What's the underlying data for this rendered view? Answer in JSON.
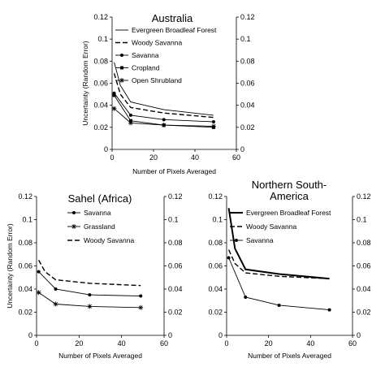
{
  "chart_data": [
    {
      "type": "line",
      "title": "Australia",
      "xlabel": "Number of Pixels Averaged",
      "ylabel": "Uncertainty (Random Error)",
      "xlim": [
        0,
        60
      ],
      "ylim": [
        0,
        0.12
      ],
      "x_ticks": [
        "0",
        "20",
        "40",
        "60"
      ],
      "y_ticks": [
        "0",
        "0.02",
        "0.04",
        "0.06",
        "0.08",
        "0.1",
        "0.12"
      ],
      "secondary_y_axis": true,
      "legend_position": "top-right",
      "series": [
        {
          "name": "Evergreen Broadleaf Forest",
          "style": "solid",
          "marker": "none",
          "x": [
            1,
            4,
            9,
            25,
            49
          ],
          "y": [
            0.079,
            0.058,
            0.043,
            0.036,
            0.031
          ]
        },
        {
          "name": "Woody Savanna",
          "style": "dashed",
          "marker": "none",
          "x": [
            1,
            4,
            9,
            25,
            49
          ],
          "y": [
            0.069,
            0.05,
            0.038,
            0.033,
            0.029
          ]
        },
        {
          "name": "Savanna",
          "style": "solid",
          "marker": "dot",
          "x": [
            1,
            9,
            25,
            49
          ],
          "y": [
            0.051,
            0.031,
            0.027,
            0.025
          ]
        },
        {
          "name": "Cropland",
          "style": "solid",
          "marker": "square",
          "x": [
            1,
            9,
            25,
            49
          ],
          "y": [
            0.049,
            0.026,
            0.022,
            0.02
          ]
        },
        {
          "name": "Open Shrubland",
          "style": "solid",
          "marker": "star",
          "x": [
            1,
            9,
            25,
            49
          ],
          "y": [
            0.037,
            0.024,
            0.022,
            0.021
          ]
        }
      ]
    },
    {
      "type": "line",
      "title": "Sahel (Africa)",
      "xlabel": "Number of Pixels Averaged",
      "ylabel": "Uncertainty (Random Error)",
      "xlim": [
        0,
        60
      ],
      "ylim": [
        0,
        0.12
      ],
      "x_ticks": [
        "0",
        "20",
        "40",
        "60"
      ],
      "y_ticks": [
        "0",
        "0.02",
        "0.04",
        "0.06",
        "0.08",
        "0.1",
        "0.12"
      ],
      "secondary_y_axis": true,
      "legend_position": "top-right",
      "series": [
        {
          "name": "Savanna",
          "style": "solid",
          "marker": "dot",
          "x": [
            1,
            9,
            25,
            49
          ],
          "y": [
            0.055,
            0.04,
            0.035,
            0.034
          ]
        },
        {
          "name": "Grassland",
          "style": "solid",
          "marker": "star",
          "x": [
            1,
            9,
            25,
            49
          ],
          "y": [
            0.037,
            0.027,
            0.025,
            0.024
          ]
        },
        {
          "name": "Woody Savanna",
          "style": "dashed",
          "marker": "none",
          "x": [
            1,
            4,
            9,
            25,
            49
          ],
          "y": [
            0.065,
            0.055,
            0.048,
            0.045,
            0.043
          ]
        }
      ]
    },
    {
      "type": "line",
      "title": "Northern South-America",
      "title_lines": [
        "Northern South-",
        "America"
      ],
      "xlabel": "Number of Pixels Averaged",
      "ylabel": "",
      "xlim": [
        0,
        60
      ],
      "ylim": [
        0,
        0.12
      ],
      "x_ticks": [
        "0",
        "20",
        "40",
        "60"
      ],
      "y_ticks": [
        "0",
        "0.02",
        "0.04",
        "0.06",
        "0.08",
        "0.1",
        "0.12"
      ],
      "secondary_y_axis": true,
      "legend_position": "top-right",
      "series": [
        {
          "name": "Evergreen Broadleaf Forest",
          "style": "thick",
          "marker": "none",
          "x": [
            1,
            4,
            9,
            25,
            49
          ],
          "y": [
            0.11,
            0.075,
            0.057,
            0.053,
            0.049
          ]
        },
        {
          "name": "Woody Savanna",
          "style": "dashed",
          "marker": "none",
          "x": [
            1,
            4,
            9,
            25,
            49
          ],
          "y": [
            0.074,
            0.062,
            0.054,
            0.051,
            0.049
          ]
        },
        {
          "name": "Savanna",
          "style": "solid",
          "marker": "dot",
          "x": [
            1,
            9,
            25,
            49
          ],
          "y": [
            0.067,
            0.033,
            0.026,
            0.022
          ]
        }
      ]
    }
  ]
}
